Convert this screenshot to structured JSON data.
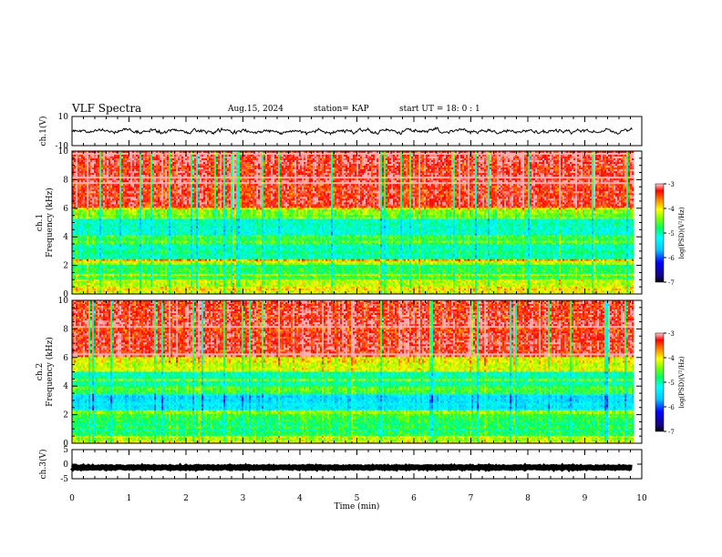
{
  "header": {
    "title": "VLF Spectra",
    "date": "Aug.15, 2024",
    "station": "station= KAP",
    "start": "start  UT  =   18: 0  : 1"
  },
  "chart_data": [
    {
      "type": "line",
      "panel": "ch1-waveform",
      "ylabel": "ch.1(V)",
      "ylim": [
        -10,
        10
      ],
      "yticks": [
        "10",
        "-10"
      ],
      "x_range_min": [
        0,
        9.83
      ],
      "y_typical": [
        -5,
        5
      ],
      "color": "#000000"
    },
    {
      "type": "heatmap",
      "panel": "ch1-spectrogram",
      "ylabel": "ch.1 Frequency (kHz)",
      "ylim": [
        0,
        10
      ],
      "yticks": [
        "0",
        "2",
        "4",
        "6",
        "8",
        "10"
      ],
      "x_range_min": [
        0,
        9.83
      ],
      "colorbar": {
        "label": "log(PSD)(V²/Hz)",
        "ticks": [
          "-3",
          "-4",
          "-5",
          "-6",
          "-7"
        ],
        "range": [
          -7,
          -3
        ]
      },
      "bands_logpsd": [
        {
          "f": [
            0,
            0.5
          ],
          "v": -4.0
        },
        {
          "f": [
            0.5,
            1.0
          ],
          "v": -4.3
        },
        {
          "f": [
            1.0,
            2.0
          ],
          "v": -4.8
        },
        {
          "f": [
            2.0,
            2.5
          ],
          "v": -4.3
        },
        {
          "f": [
            2.5,
            3.5
          ],
          "v": -5.0
        },
        {
          "f": [
            3.5,
            4.0
          ],
          "v": -4.6
        },
        {
          "f": [
            4.0,
            5.2
          ],
          "v": -5.1
        },
        {
          "f": [
            5.2,
            6.0
          ],
          "v": -4.5
        },
        {
          "f": [
            6.0,
            10.0
          ],
          "v": -3.3
        }
      ]
    },
    {
      "type": "heatmap",
      "panel": "ch2-spectrogram",
      "ylabel": "ch.2 Frequency (kHz)",
      "ylim": [
        0,
        10
      ],
      "yticks": [
        "0",
        "2",
        "4",
        "6",
        "8",
        "10"
      ],
      "x_range_min": [
        0,
        9.83
      ],
      "colorbar": {
        "label": "log(PSD)(V²/Hz)",
        "ticks": [
          "-3",
          "-4",
          "-5",
          "-6",
          "-7"
        ],
        "range": [
          -7,
          -3
        ]
      },
      "bands_logpsd": [
        {
          "f": [
            0,
            0.5
          ],
          "v": -4.2
        },
        {
          "f": [
            0.5,
            2.0
          ],
          "v": -4.8
        },
        {
          "f": [
            2.0,
            2.3
          ],
          "v": -4.4
        },
        {
          "f": [
            2.3,
            3.5
          ],
          "v": -5.4
        },
        {
          "f": [
            3.5,
            4.0
          ],
          "v": -4.6
        },
        {
          "f": [
            4.0,
            5.0
          ],
          "v": -5.0
        },
        {
          "f": [
            5.0,
            6.0
          ],
          "v": -4.1
        },
        {
          "f": [
            6.0,
            10.0
          ],
          "v": -3.3
        }
      ]
    },
    {
      "type": "line",
      "panel": "ch3-waveform",
      "ylabel": "ch.3(V)",
      "ylim": [
        -5,
        5
      ],
      "yticks": [
        "5",
        "0",
        "-5"
      ],
      "x_range_min": [
        0,
        9.83
      ],
      "y_typical": [
        -1.8,
        -0.5
      ],
      "color": "#000000"
    }
  ],
  "xaxis": {
    "label": "Time  (min)",
    "ticks": [
      "0",
      "1",
      "2",
      "3",
      "4",
      "5",
      "6",
      "7",
      "8",
      "9",
      "10"
    ],
    "range": [
      0,
      10
    ]
  }
}
